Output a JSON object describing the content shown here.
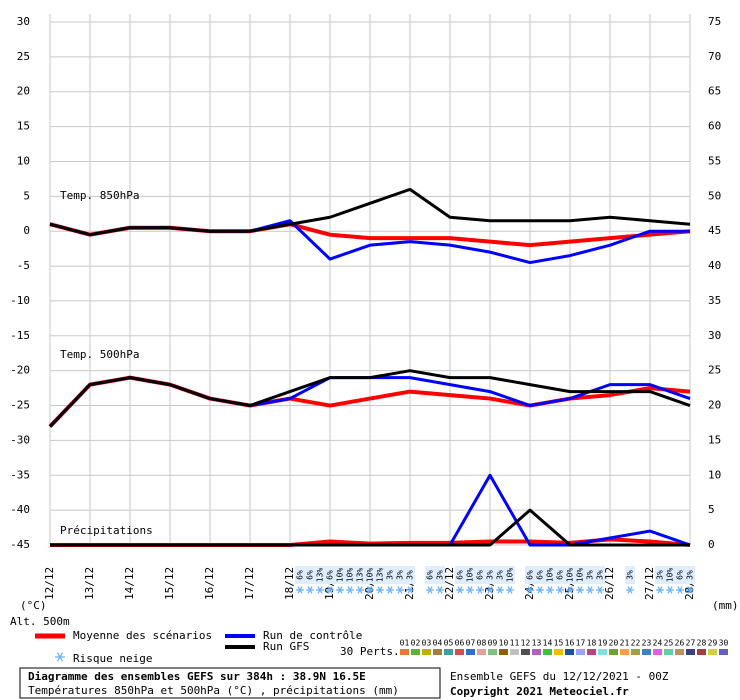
{
  "chart_data": {
    "type": "line",
    "title": "Diagramme des ensembles GEFS sur 384h : 38.9N 16.5E",
    "subtitle": "Températures 850hPa et 500hPa (°C) , précipitations (mm)",
    "run_info": "Ensemble GEFS du 12/12/2021 - 00Z",
    "copyright": "Copyright 2021 Meteociel.fr",
    "ylabel": "(°C)",
    "y2label": "(mm)",
    "altitude": "Alt. 500m",
    "panel_labels": [
      "Temp. 850hPa",
      "Temp. 500hPa",
      "Précipitations"
    ],
    "categories": [
      "12/12",
      "13/12",
      "14/12",
      "15/12",
      "16/12",
      "17/12",
      "18/12",
      "19/12",
      "20/12",
      "21/12",
      "22/12",
      "23/12",
      "24/12",
      "25/12",
      "26/12",
      "27/12",
      "28/12"
    ],
    "ylim": [
      -45,
      30
    ],
    "yticks": [
      -45,
      -40,
      -35,
      -30,
      -25,
      -20,
      -15,
      -10,
      -5,
      0,
      5,
      10,
      15,
      20,
      25,
      30
    ],
    "y2lim": [
      0,
      75
    ],
    "y2ticks": [
      0,
      5,
      10,
      15,
      20,
      25,
      30,
      35,
      40,
      45,
      50,
      55,
      60,
      65,
      70,
      75
    ],
    "grid": true,
    "series": [
      {
        "name": "Moyenne des scénarios",
        "color": "#ff0000",
        "width": 4,
        "t850": [
          1,
          -0.5,
          0.5,
          0.5,
          0,
          0,
          1,
          -0.5,
          -1,
          -1,
          -1,
          -1.5,
          -2,
          -1.5,
          -1,
          -0.5,
          0
        ],
        "t500": [
          -28,
          -22,
          -21,
          -22,
          -24,
          -25,
          -24,
          -25,
          -24,
          -23,
          -23.5,
          -24,
          -25,
          -24,
          -23.5,
          -22.5,
          -23
        ],
        "precip": [
          0,
          0,
          0,
          0,
          0,
          0,
          0,
          0.5,
          0.2,
          0.3,
          0.3,
          0.5,
          0.5,
          0.3,
          0.8,
          0.5,
          0
        ]
      },
      {
        "name": "Run de contrôle",
        "color": "#0000ff",
        "width": 3,
        "t850": [
          1,
          -0.5,
          0.5,
          0.5,
          0,
          0,
          1.5,
          -4,
          -2,
          -1.5,
          -2,
          -3,
          -4.5,
          -3.5,
          -2,
          0,
          0
        ],
        "t500": [
          -28,
          -22,
          -21,
          -22,
          -24,
          -25,
          -24,
          -21,
          -21,
          -21,
          -22,
          -23,
          -25,
          -24,
          -22,
          -22,
          -24
        ],
        "precip": [
          0,
          0,
          0,
          0,
          0,
          0,
          0,
          0,
          0,
          0,
          0,
          10,
          0,
          0,
          1,
          2,
          0
        ]
      },
      {
        "name": "Run GFS",
        "color": "#000000",
        "width": 3,
        "t850": [
          1,
          -0.5,
          0.5,
          0.5,
          0,
          0,
          1,
          2,
          4,
          6,
          2,
          1.5,
          1.5,
          1.5,
          2,
          1.5,
          1
        ],
        "t500": [
          -28,
          -22,
          -21,
          -22,
          -24,
          -25,
          -23,
          -21,
          -21,
          -20,
          -21,
          -21,
          -22,
          -23,
          -23,
          -23,
          -25
        ],
        "precip": [
          0,
          0,
          0,
          0,
          0,
          0,
          0,
          0,
          0,
          0,
          0,
          0,
          5,
          0,
          0,
          0,
          0
        ]
      }
    ],
    "snow_risk": {
      "name": "Risque neige",
      "hours": [
        150,
        156,
        162,
        168,
        174,
        180,
        186,
        192,
        198,
        204,
        210,
        216,
        228,
        234,
        246,
        252,
        258,
        264,
        270,
        276,
        288,
        294,
        300,
        306,
        312,
        318,
        324,
        330,
        348,
        366,
        372,
        378,
        384
      ],
      "values": [
        6,
        6,
        13,
        6,
        10,
        10,
        13,
        10,
        13,
        3,
        3,
        3,
        6,
        3,
        6,
        10,
        6,
        3,
        3,
        10,
        6,
        6,
        10,
        6,
        10,
        10,
        3,
        3,
        3,
        3,
        10,
        6,
        3
      ],
      "value_labels": [
        "6%",
        "6%",
        "13%",
        "6%",
        "10%",
        "10%",
        "13%",
        "10%",
        "13%",
        "3%",
        "3%",
        "3%",
        "6%",
        "3%",
        "6%",
        "10%",
        "6%",
        "3%",
        "3%",
        "10%",
        "6%",
        "6%",
        "10%",
        "6%",
        "10%",
        "10%",
        "3%",
        "3%",
        "3%",
        "3%",
        "10%",
        "6%",
        "3%"
      ]
    },
    "perturbations": {
      "label": "30 Perts.",
      "names": [
        "01",
        "02",
        "03",
        "04",
        "05",
        "06",
        "07",
        "08",
        "09",
        "10",
        "11",
        "12",
        "13",
        "14",
        "15",
        "16",
        "17",
        "18",
        "19",
        "20",
        "21",
        "22",
        "23",
        "24",
        "25",
        "26",
        "27",
        "28",
        "29",
        "30"
      ],
      "colors": [
        "#e87830",
        "#60b040",
        "#c0b000",
        "#a08040",
        "#40a0a0",
        "#d05050",
        "#3070d0",
        "#e0a0a0",
        "#80c080",
        "#906000",
        "#c0c0c0",
        "#505050",
        "#b060c0",
        "#40c040",
        "#f0c000",
        "#2050a0",
        "#a0a0ff",
        "#c04080",
        "#80e0e0",
        "#70a030",
        "#ffa040",
        "#a0a040",
        "#4080c0",
        "#e060e0",
        "#60d0a0",
        "#c09060",
        "#404080",
        "#a04040",
        "#d0d040",
        "#6060c0"
      ]
    }
  }
}
